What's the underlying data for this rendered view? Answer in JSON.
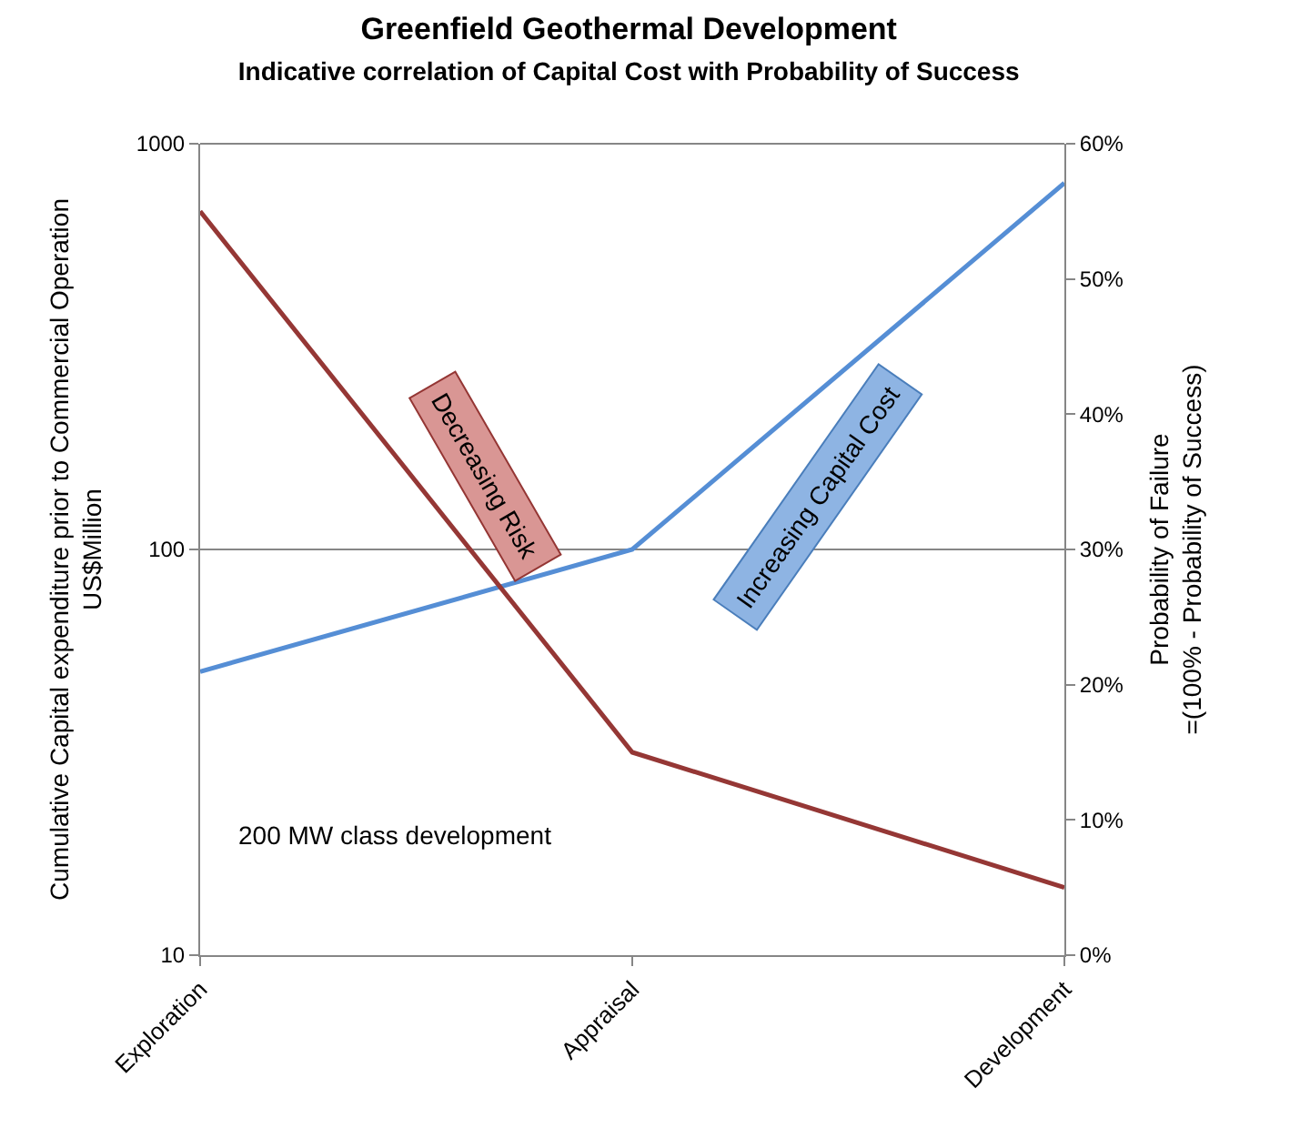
{
  "chart_data": {
    "type": "line",
    "title": "Greenfield Geothermal Development",
    "subtitle": "Indicative correlation of Capital Cost with Probability of Success",
    "ylabel": "Cumulative Capital expenditure prior to Commercial Operation\nUS$Million",
    "y2label": "Probability of Failure\n=(100% - Probability of Success)",
    "categories": [
      "Exploration",
      "Appraisal",
      "Development"
    ],
    "series": [
      {
        "color": "#558ed5",
        "values": [
          50,
          100,
          800
        ]
      },
      {
        "color": "#953735",
        "values": [
          55,
          15,
          5
        ],
        "axis": "y2"
      }
    ],
    "log": "y",
    "ylim": [
      10,
      1000
    ],
    "yticks": [
      10,
      100,
      1000
    ],
    "y2lim": [
      0,
      60
    ],
    "y2ticks": [
      {
        "value": 0,
        "label": "0%"
      },
      {
        "value": 10,
        "label": "10%"
      },
      {
        "value": 20,
        "label": "20%"
      },
      {
        "value": 30,
        "label": "30%"
      },
      {
        "value": 40,
        "label": "40%"
      },
      {
        "value": 50,
        "label": "50%"
      },
      {
        "value": 60,
        "label": "60%"
      }
    ],
    "grid": "y",
    "marker": "none",
    "line_style": "solid",
    "annotations": [
      "Decreasing Risk",
      "Increasing Capital Cost",
      "200 MW class development"
    ]
  }
}
